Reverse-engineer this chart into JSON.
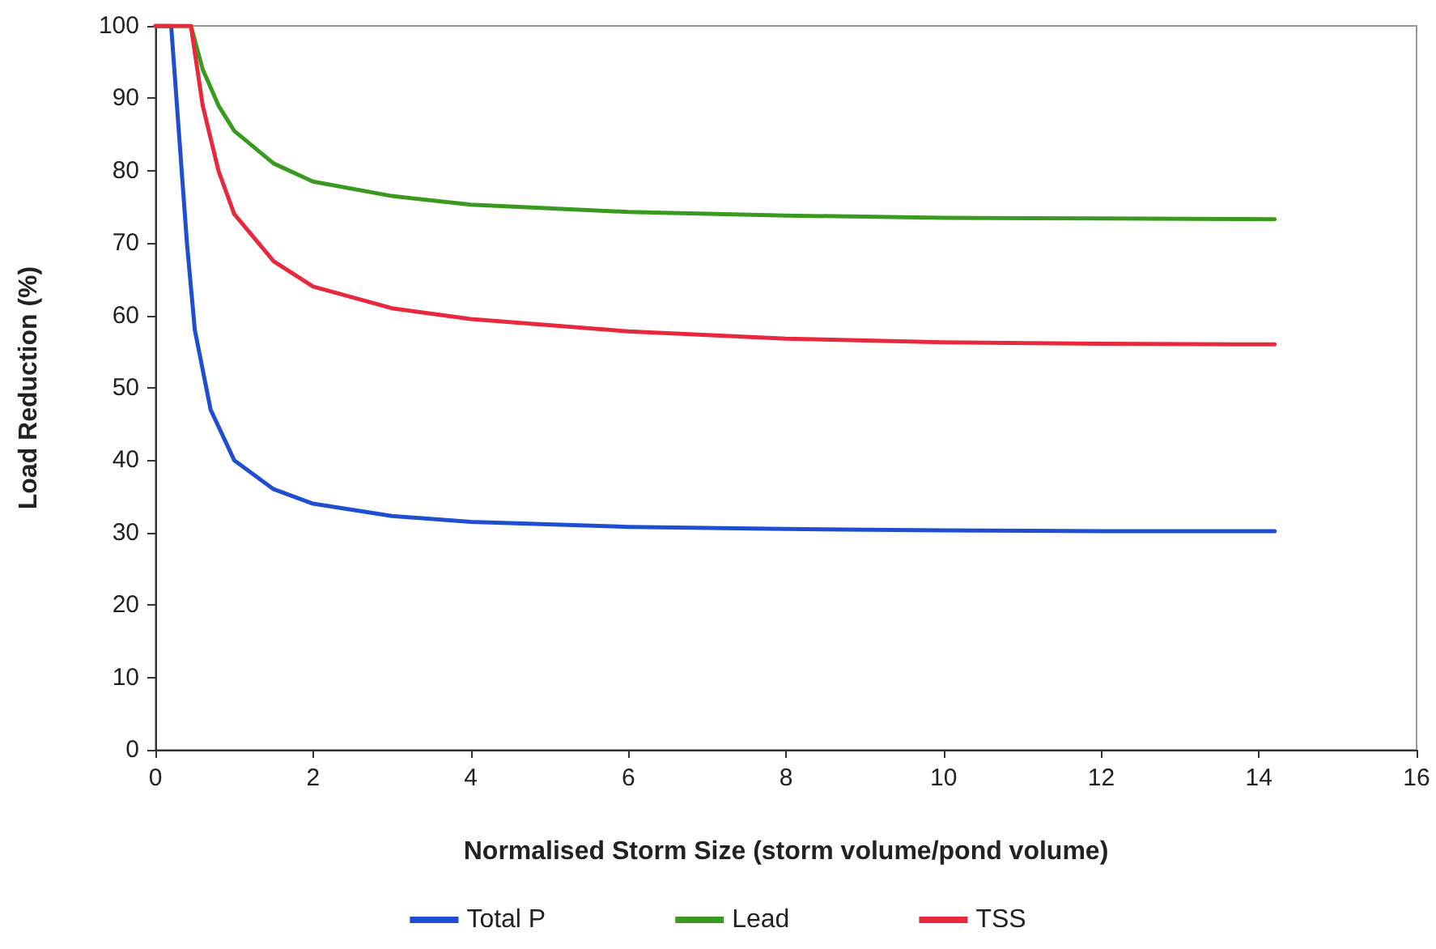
{
  "chart_data": {
    "type": "line",
    "xlabel": "Normalised Storm Size (storm volume/pond volume)",
    "ylabel": "Load Reduction (%)",
    "xlim": [
      0,
      16
    ],
    "xticks": [
      0,
      2,
      4,
      6,
      8,
      10,
      12,
      14,
      16
    ],
    "ylim": [
      0,
      100
    ],
    "yticks": [
      0,
      10,
      20,
      30,
      40,
      50,
      60,
      70,
      80,
      90,
      100
    ],
    "grid": false,
    "legend": "bottom",
    "marker": "none",
    "line_style": "solid",
    "series": [
      {
        "name": "Total P",
        "color": "#1f4fd0",
        "x": [
          0,
          0.2,
          0.3,
          0.4,
          0.5,
          0.7,
          1,
          1.5,
          2,
          3,
          4,
          6,
          8,
          10,
          12,
          14.2
        ],
        "values": [
          100,
          100,
          85,
          70,
          58,
          47,
          40,
          36,
          34,
          32.3,
          31.5,
          30.8,
          30.5,
          30.3,
          30.2,
          30.2
        ]
      },
      {
        "name": "Lead",
        "color": "#3a9a1f",
        "x": [
          0,
          0.45,
          0.6,
          0.8,
          1,
          1.5,
          2,
          3,
          4,
          6,
          8,
          10,
          12,
          14.2
        ],
        "values": [
          100,
          100,
          94,
          89,
          85.5,
          81,
          78.5,
          76.5,
          75.3,
          74.3,
          73.8,
          73.5,
          73.4,
          73.3
        ]
      },
      {
        "name": "TSS",
        "color": "#e8283c",
        "x": [
          0,
          0.45,
          0.6,
          0.8,
          1,
          1.5,
          2,
          3,
          4,
          6,
          8,
          10,
          12,
          14.2
        ],
        "values": [
          100,
          100,
          89,
          80,
          74,
          67.5,
          64,
          61,
          59.5,
          57.8,
          56.8,
          56.3,
          56.1,
          56
        ]
      }
    ]
  }
}
